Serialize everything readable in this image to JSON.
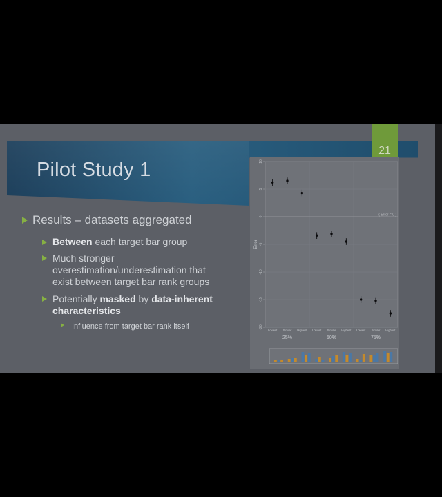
{
  "slide": {
    "title": "Pilot Study 1",
    "page_number": "21",
    "bullets": [
      {
        "level": 1,
        "text": "Results – datasets aggregated"
      },
      {
        "level": 2,
        "bold": "Between",
        "rest": " each target bar group"
      },
      {
        "level": 2,
        "line1": "Much stronger",
        "line2": "overestimation/underestimation that",
        "line3": "exist between target bar rank groups"
      },
      {
        "level": 2,
        "pre": "Potentially ",
        "bold1": "masked",
        "mid": " by ",
        "bold2": "data-inherent",
        "bold3": "characteristics"
      },
      {
        "level": 3,
        "text": "Influence from target bar rank itself"
      }
    ]
  },
  "colors": {
    "accent_green": "#86b043",
    "banner_blue": "#2a5f80",
    "bar_blue": "#4a78a6",
    "bar_orange": "#c48a2c"
  },
  "chart_data": {
    "type": "scatter",
    "ylabel": "Error",
    "ylim": [
      -20,
      10
    ],
    "y_ticks": [
      "10",
      "5",
      "0",
      "-5",
      "-10",
      "-15",
      "-20"
    ],
    "reference_line": {
      "y": 0,
      "label": "Error = 0"
    },
    "categories": [
      "Lowest",
      "Similar",
      "Highest",
      "Lowest",
      "Similar",
      "Highest",
      "Lowest",
      "Similar",
      "Highest"
    ],
    "groups": [
      "25%",
      "50%",
      "75%"
    ],
    "values": [
      6.2,
      6.5,
      4.3,
      -3.4,
      -3.1,
      -4.5,
      -15.0,
      -15.2,
      -17.5
    ],
    "error_margin": [
      0.6,
      0.6,
      0.6,
      0.6,
      0.6,
      0.6,
      0.6,
      0.6,
      0.6
    ],
    "grid": true
  }
}
